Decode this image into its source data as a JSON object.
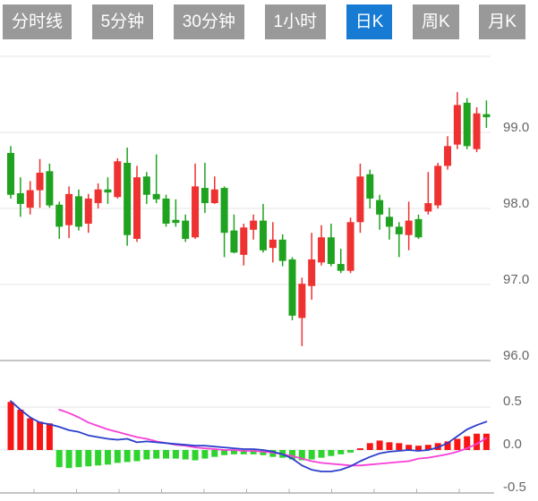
{
  "toolbar": {
    "tabs": [
      {
        "label": "分时线",
        "active": false
      },
      {
        "label": "5分钟",
        "active": false
      },
      {
        "label": "30分钟",
        "active": false
      },
      {
        "label": "1小时",
        "active": false
      },
      {
        "label": "日K",
        "active": true
      },
      {
        "label": "周K",
        "active": false
      },
      {
        "label": "月K",
        "active": false
      }
    ],
    "active_tab_color": "#187bd3",
    "inactive_tab_color": "#999999",
    "tab_text_color": "#ffffff"
  },
  "chart_data": {
    "type": "candlestick",
    "title": "",
    "xlabel": "",
    "ylabel": "",
    "legend": "none",
    "grid": true,
    "x_axis": {
      "tick_labels": []
    },
    "price_pane": {
      "axis_side": "right",
      "yticks": [
        {
          "text": "99.0",
          "value": 99.0
        },
        {
          "text": "98.0",
          "value": 98.0
        },
        {
          "text": "97.0",
          "value": 97.0
        },
        {
          "text": "96.0",
          "value": 96.0
        }
      ],
      "gridline_values": [
        100.0,
        99.0,
        98.0,
        97.0,
        96.0
      ],
      "ylim": [
        95.8,
        100.0
      ],
      "candles_ohlc": [
        [
          98.73,
          98.82,
          98.13,
          98.18
        ],
        [
          98.2,
          98.41,
          97.89,
          98.06
        ],
        [
          98.01,
          98.36,
          97.92,
          98.24
        ],
        [
          98.24,
          98.65,
          98.01,
          98.47
        ],
        [
          98.49,
          98.59,
          98.01,
          98.04
        ],
        [
          98.05,
          98.09,
          97.6,
          97.76
        ],
        [
          97.78,
          98.29,
          97.61,
          98.19
        ],
        [
          98.16,
          98.25,
          97.71,
          97.76
        ],
        [
          97.8,
          98.19,
          97.68,
          98.13
        ],
        [
          98.07,
          98.33,
          98.0,
          98.25
        ],
        [
          98.25,
          98.41,
          98.06,
          98.21
        ],
        [
          98.15,
          98.66,
          98.13,
          98.62
        ],
        [
          98.6,
          98.8,
          97.51,
          97.65
        ],
        [
          97.6,
          98.56,
          97.56,
          98.41
        ],
        [
          98.42,
          98.48,
          98.06,
          98.18
        ],
        [
          98.19,
          98.71,
          98.07,
          98.12
        ],
        [
          98.13,
          98.18,
          97.76,
          97.8
        ],
        [
          97.85,
          98.12,
          97.76,
          97.81
        ],
        [
          97.84,
          97.92,
          97.56,
          97.6
        ],
        [
          97.62,
          98.59,
          97.6,
          98.29
        ],
        [
          98.27,
          98.6,
          97.94,
          98.07
        ],
        [
          98.07,
          98.42,
          98.06,
          98.25
        ],
        [
          98.27,
          98.29,
          97.36,
          97.68
        ],
        [
          97.71,
          97.92,
          97.41,
          97.42
        ],
        [
          97.39,
          97.8,
          97.25,
          97.75
        ],
        [
          97.72,
          97.92,
          97.59,
          97.84
        ],
        [
          97.84,
          98.06,
          97.42,
          97.45
        ],
        [
          97.48,
          97.82,
          97.29,
          97.59
        ],
        [
          97.59,
          97.66,
          97.24,
          97.31
        ],
        [
          97.33,
          97.36,
          96.53,
          96.59
        ],
        [
          96.56,
          97.09,
          96.19,
          97.01
        ],
        [
          96.98,
          97.68,
          96.8,
          97.33
        ],
        [
          97.29,
          97.78,
          97.25,
          97.62
        ],
        [
          97.62,
          97.8,
          97.24,
          97.27
        ],
        [
          97.27,
          97.47,
          97.15,
          97.18
        ],
        [
          97.18,
          97.88,
          97.15,
          97.82
        ],
        [
          97.82,
          98.59,
          97.68,
          98.42
        ],
        [
          98.45,
          98.51,
          98.0,
          98.13
        ],
        [
          98.11,
          98.18,
          97.72,
          97.92
        ],
        [
          97.89,
          98.01,
          97.59,
          97.76
        ],
        [
          97.76,
          97.82,
          97.36,
          97.66
        ],
        [
          97.65,
          98.09,
          97.45,
          97.84
        ],
        [
          97.86,
          97.92,
          97.6,
          97.62
        ],
        [
          97.96,
          98.48,
          97.92,
          98.07
        ],
        [
          98.04,
          98.6,
          98.0,
          98.56
        ],
        [
          98.56,
          98.95,
          98.51,
          98.82
        ],
        [
          98.84,
          99.53,
          98.78,
          99.36
        ],
        [
          99.39,
          99.45,
          98.78,
          98.82
        ],
        [
          98.78,
          99.33,
          98.74,
          99.25
        ],
        [
          99.24,
          99.42,
          99.06,
          99.2
        ]
      ]
    },
    "macd_pane": {
      "axis_side": "right",
      "yticks": [
        {
          "text": "0.5",
          "value": 0.5
        },
        {
          "text": "0.0",
          "value": 0.0
        },
        {
          "text": "-0.5",
          "value": -0.5
        }
      ],
      "gridline_values": [
        0.5,
        0.0,
        -0.5
      ],
      "ylim": [
        -0.5,
        0.5
      ],
      "histogram": [
        0.56,
        0.47,
        0.37,
        0.33,
        0.31,
        -0.2,
        -0.21,
        -0.2,
        -0.19,
        -0.18,
        -0.17,
        -0.15,
        -0.14,
        -0.13,
        -0.11,
        -0.1,
        -0.1,
        -0.1,
        -0.11,
        -0.12,
        -0.1,
        -0.08,
        -0.06,
        -0.05,
        -0.05,
        -0.05,
        -0.06,
        -0.08,
        -0.09,
        -0.11,
        -0.12,
        -0.11,
        -0.09,
        -0.07,
        -0.05,
        -0.03,
        0.02,
        0.08,
        0.11,
        0.09,
        0.08,
        0.06,
        0.05,
        0.06,
        0.08,
        0.1,
        0.13,
        0.16,
        0.19,
        0.19
      ],
      "dif_line": [
        0.57,
        0.47,
        0.38,
        0.32,
        0.3,
        0.27,
        0.23,
        0.21,
        0.17,
        0.15,
        0.13,
        0.12,
        0.13,
        0.09,
        0.1,
        0.09,
        0.08,
        0.07,
        0.06,
        0.05,
        0.05,
        0.04,
        0.03,
        0.02,
        0.01,
        0.01,
        0.0,
        -0.02,
        -0.05,
        -0.1,
        -0.18,
        -0.23,
        -0.25,
        -0.25,
        -0.23,
        -0.19,
        -0.13,
        -0.08,
        -0.04,
        -0.02,
        -0.01,
        0.0,
        -0.01,
        0.0,
        0.03,
        0.08,
        0.16,
        0.24,
        0.29,
        0.33
      ],
      "dea_line": [
        null,
        null,
        null,
        null,
        null,
        0.47,
        0.43,
        0.38,
        0.32,
        0.28,
        0.24,
        0.21,
        0.18,
        0.15,
        0.13,
        0.1,
        0.08,
        0.06,
        0.05,
        0.03,
        0.02,
        0.01,
        0.0,
        0.0,
        -0.01,
        -0.01,
        -0.02,
        -0.03,
        -0.05,
        -0.07,
        -0.1,
        -0.13,
        -0.15,
        -0.16,
        -0.17,
        -0.18,
        -0.18,
        -0.17,
        -0.16,
        -0.15,
        -0.14,
        -0.13,
        -0.1,
        -0.09,
        -0.07,
        -0.05,
        -0.02,
        0.02,
        0.07,
        0.14
      ]
    },
    "colors": {
      "candle_up": "#ee3131",
      "candle_down": "#1fa21f",
      "macd_bar_up": "#f71515",
      "macd_bar_down": "#2ed32e",
      "dif_line": "#2b3ecb",
      "dea_line": "#f83fd6",
      "gridline": "#e4e4e4",
      "pane_border": "#c6c6c6",
      "bottom_axis": "#b0b0b0",
      "tick_label": "#666666"
    }
  }
}
